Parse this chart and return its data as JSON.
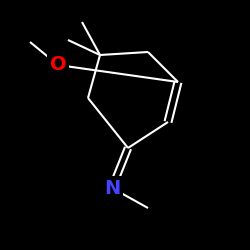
{
  "background_color": "#000000",
  "bond_color": "#ffffff",
  "N_color": "#4444ff",
  "O_color": "#ff0000",
  "bond_lw": 1.5,
  "font_size_atom": 14
}
